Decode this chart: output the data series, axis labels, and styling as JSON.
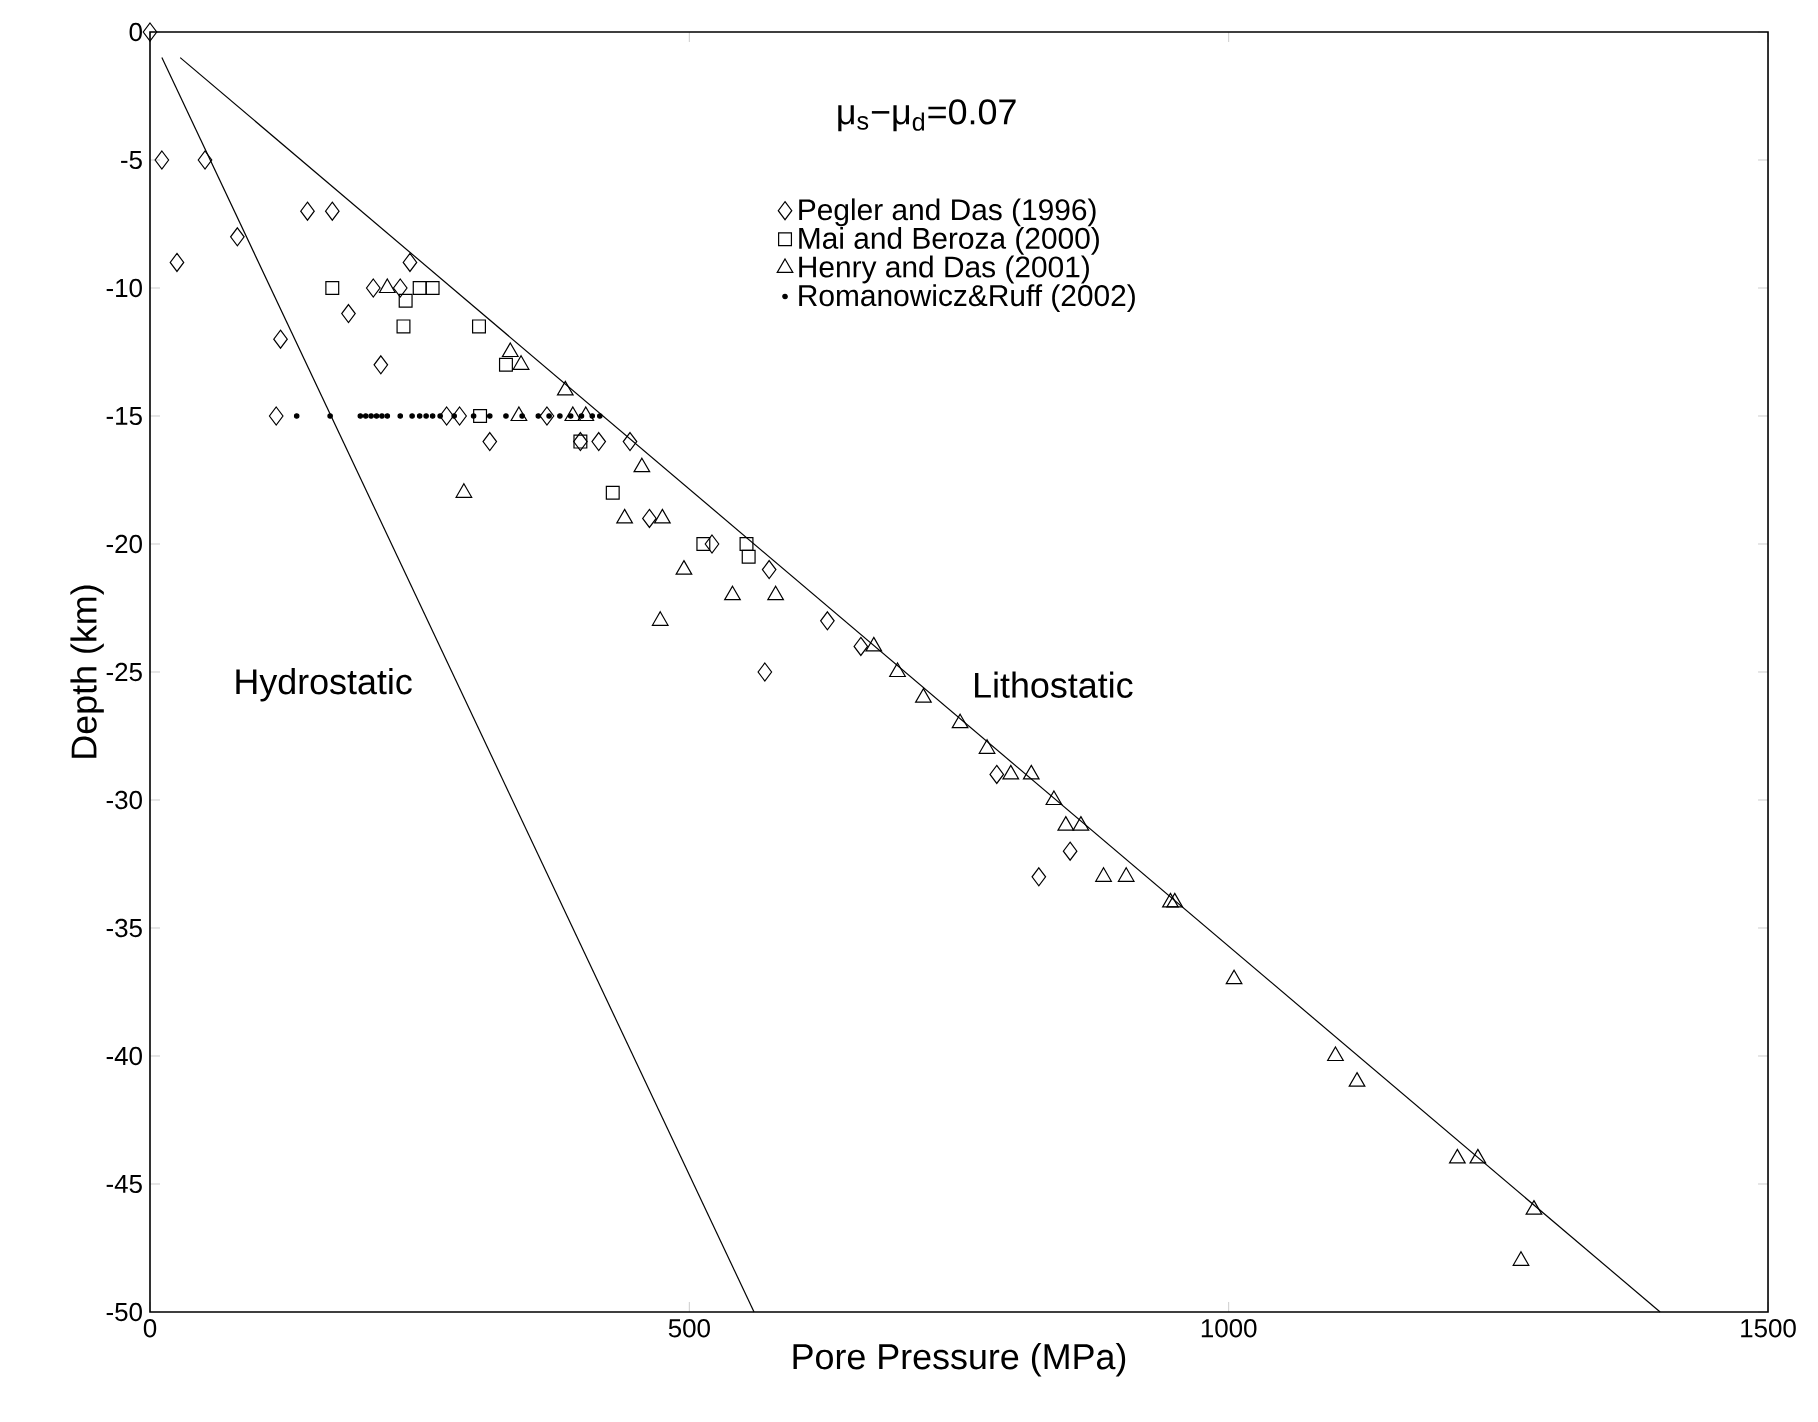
{
  "chart_data": {
    "type": "scatter",
    "xlabel": "Pore Pressure (MPa)",
    "ylabel": "Depth (km)",
    "xlim": [
      0,
      1500
    ],
    "ylim": [
      -50,
      0
    ],
    "xticks": [
      0,
      500,
      1000,
      1500
    ],
    "yticks": [
      -50,
      -45,
      -40,
      -35,
      -30,
      -25,
      -20,
      -15,
      -10,
      -5,
      0
    ],
    "grid": false,
    "legend": "top",
    "annotations": [
      "μ$_{s}$−μ$_{d}$=0.07",
      "Hydrostatic",
      "Lithostatic"
    ],
    "series": [
      {
        "name": "Pegler and Das (1996)",
        "marker": "diamond",
        "color": "#000000",
        "x": [
          0,
          11,
          51,
          25,
          81,
          146,
          169,
          121,
          184,
          207,
          232,
          241,
          214,
          117,
          275,
          287,
          315,
          368,
          399,
          416,
          445,
          463,
          521,
          574,
          628,
          659,
          570,
          785,
          853,
          824
        ],
        "values": [
          0,
          -5,
          -5,
          -9,
          -8,
          -7,
          -7,
          -12,
          -11,
          -10,
          -10,
          -9,
          -13,
          -15,
          -15,
          -15,
          -16,
          -15,
          -16,
          -16,
          -16,
          -19,
          -20,
          -21,
          -23,
          -24,
          -25,
          -29,
          -32,
          -33
        ]
      },
      {
        "name": "Mai and Beroza (2000)",
        "marker": "square",
        "color": "#000000",
        "x": [
          169,
          250,
          262,
          237,
          235,
          305,
          330,
          306,
          399,
          429,
          513,
          553,
          555
        ],
        "values": [
          -10,
          -10,
          -10,
          -10.5,
          -11.5,
          -11.5,
          -13,
          -15,
          -16,
          -18,
          -20,
          -20,
          -20.5
        ]
      },
      {
        "name": "Henry and Das (2001)",
        "marker": "triangle",
        "color": "#000000",
        "x": [
          220,
          334,
          344,
          385,
          342,
          392,
          404,
          291,
          456,
          440,
          475,
          495,
          540,
          580,
          473,
          671,
          693,
          717,
          751,
          776,
          798,
          817,
          838,
          849,
          863,
          884,
          905,
          946,
          950,
          1005,
          1099,
          1119,
          1212,
          1231,
          1283,
          1271
        ],
        "values": [
          -10,
          -12.5,
          -13,
          -14,
          -15,
          -15,
          -15,
          -18,
          -17,
          -19,
          -19,
          -21,
          -22,
          -22,
          -23,
          -24,
          -25,
          -26,
          -27,
          -28,
          -29,
          -29,
          -30,
          -31,
          -31,
          -33,
          -33,
          -34,
          -34,
          -37,
          -40,
          -41,
          -44,
          -44,
          -46,
          -48
        ]
      },
      {
        "name": "Romanowicz&Ruff (2002)",
        "marker": "circle",
        "color": "#000000",
        "x": [
          136,
          167,
          195,
          200,
          205,
          210,
          215,
          220,
          232,
          243,
          250,
          256,
          262,
          269,
          282,
          300,
          315,
          330,
          345,
          360,
          370,
          380,
          390,
          400,
          410,
          417
        ],
        "values": [
          -15,
          -15,
          -15,
          -15,
          -15,
          -15,
          -15,
          -15,
          -15,
          -15,
          -15,
          -15,
          -15,
          -15,
          -15,
          -15,
          -15,
          -15,
          -15,
          -15,
          -15,
          -15,
          -15,
          -15,
          -15,
          -15
        ]
      },
      {
        "type": "line",
        "marker": "none",
        "color": "#000000",
        "x": [
          11,
          560
        ],
        "values": [
          -1,
          -50
        ]
      },
      {
        "type": "line",
        "marker": "none",
        "color": "#000000",
        "x": [
          28,
          1400
        ],
        "values": [
          -1,
          -50
        ]
      }
    ]
  }
}
